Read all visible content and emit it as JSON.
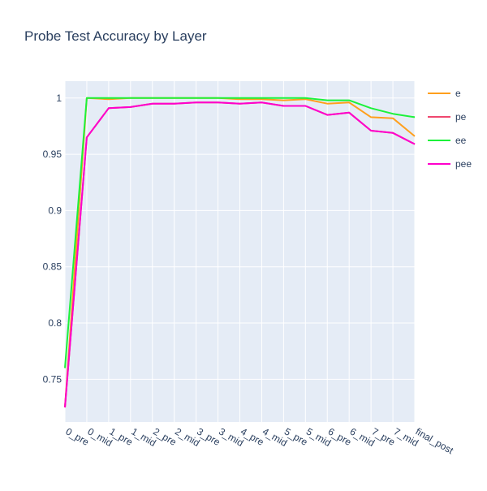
{
  "chart_data": {
    "type": "line",
    "title": "Probe Test Accuracy by Layer",
    "xlabel": "",
    "ylabel": "",
    "categories": [
      "0_pre",
      "0_mid",
      "1_pre",
      "1_mid",
      "2_pre",
      "2_mid",
      "3_pre",
      "3_mid",
      "4_pre",
      "4_mid",
      "5_pre",
      "5_mid",
      "6_pre",
      "6_mid",
      "7_pre",
      "7_mid",
      "final_post"
    ],
    "ylim": [
      0.712,
      1.015
    ],
    "yticks": [
      0.75,
      0.8,
      0.85,
      0.9,
      0.95,
      1
    ],
    "ytick_labels": [
      "0.75",
      "0.8",
      "0.85",
      "0.9",
      "0.95",
      "1"
    ],
    "grid": true,
    "legend_position": "top-right",
    "series": [
      {
        "name": "e",
        "color": "#ff9f1c",
        "values": [
          0.725,
          1.0,
          0.999,
          1.0,
          1.0,
          1.0,
          1.0,
          1.0,
          0.999,
          0.999,
          0.998,
          0.999,
          0.995,
          0.996,
          0.983,
          0.982,
          0.966
        ]
      },
      {
        "name": "pe",
        "color": "#ef476f",
        "values": [
          0.725,
          0.965,
          0.991,
          0.992,
          0.995,
          0.995,
          0.996,
          0.996,
          0.995,
          0.996,
          0.993,
          0.993,
          0.985,
          0.987,
          0.971,
          0.969,
          0.959
        ]
      },
      {
        "name": "ee",
        "color": "#1cf23a",
        "values": [
          0.76,
          1.0,
          1.0,
          1.0,
          1.0,
          1.0,
          1.0,
          1.0,
          1.0,
          1.0,
          1.0,
          1.0,
          0.998,
          0.998,
          0.991,
          0.986,
          0.983
        ]
      },
      {
        "name": "pee",
        "color": "#ff00cc",
        "values": [
          0.725,
          0.965,
          0.991,
          0.992,
          0.995,
          0.995,
          0.996,
          0.996,
          0.995,
          0.996,
          0.993,
          0.993,
          0.985,
          0.987,
          0.971,
          0.969,
          0.959
        ]
      }
    ]
  }
}
